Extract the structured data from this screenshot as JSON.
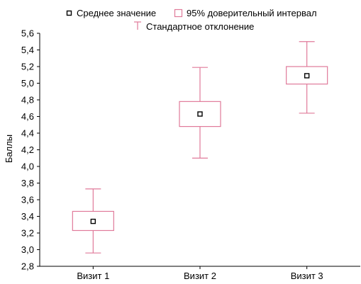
{
  "chart_data": {
    "type": "box",
    "title": "",
    "xlabel": "",
    "ylabel": "Баллы",
    "ylim": [
      2.8,
      5.6
    ],
    "yticks": [
      "2,8",
      "3,0",
      "3,2",
      "3,4",
      "3,6",
      "3,8",
      "4,0",
      "4,2",
      "4,4",
      "4,6",
      "4,8",
      "5,0",
      "5,2",
      "5,4",
      "5,6"
    ],
    "categories": [
      "Визит 1",
      "Визит 2",
      "Визит 3"
    ],
    "legend": {
      "mean": "Среднее значение",
      "ci": "95% доверительный интервал",
      "sd": "Стандартное отклонение",
      "placement": "top"
    },
    "series": [
      {
        "category": "Визит 1",
        "mean": 3.34,
        "ci_low": 3.23,
        "ci_high": 3.46,
        "sd_low": 2.96,
        "sd_high": 3.73
      },
      {
        "category": "Визит 2",
        "mean": 4.63,
        "ci_low": 4.48,
        "ci_high": 4.78,
        "sd_low": 4.1,
        "sd_high": 5.19
      },
      {
        "category": "Визит 3",
        "mean": 5.09,
        "ci_low": 4.99,
        "ci_high": 5.2,
        "sd_low": 4.64,
        "sd_high": 5.5
      }
    ],
    "colors": {
      "box": "#e07a9a",
      "whisker": "#e07a9a",
      "mean_marker": "#000000",
      "axis": "#000000"
    },
    "grid": false
  }
}
